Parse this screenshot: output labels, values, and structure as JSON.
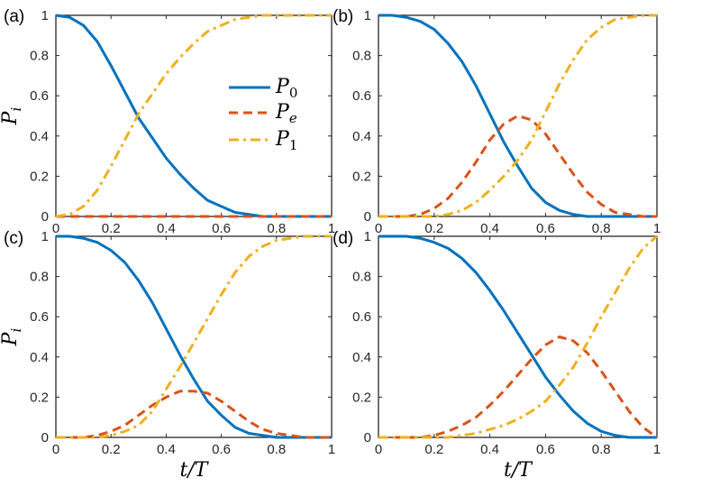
{
  "chart_data": {
    "type": "line",
    "legend": {
      "entries": [
        {
          "series": "P0",
          "symbol": "P",
          "subscript": "0"
        },
        {
          "series": "Pe",
          "symbol": "P",
          "subscript": "e"
        },
        {
          "series": "P1",
          "symbol": "P",
          "subscript": "1"
        }
      ],
      "placement": "inside panel (a), center-right"
    },
    "styles": {
      "P0": {
        "color": "#0072BD",
        "dash": "solid"
      },
      "Pe": {
        "color": "#D95319",
        "dash": "dashed"
      },
      "P1": {
        "color": "#EDB120",
        "dash": "dash-dot"
      }
    },
    "panels": [
      {
        "label": "(a)",
        "xlabel": "",
        "ylabel": "Pi",
        "ylabel_text": "P",
        "ylabel_sub": "i",
        "xlim": [
          0,
          1
        ],
        "ylim": [
          0,
          1
        ],
        "xticks": [
          "0",
          "0.2",
          "0.4",
          "0.6",
          "0.8",
          "1"
        ],
        "yticks": [
          "0",
          "0.2",
          "0.4",
          "0.6",
          "0.8",
          "1"
        ],
        "x": [
          0,
          0.05,
          0.1,
          0.15,
          0.2,
          0.25,
          0.3,
          0.35,
          0.4,
          0.45,
          0.5,
          0.55,
          0.6,
          0.65,
          0.7,
          0.75,
          0.8,
          0.85,
          0.9,
          0.95,
          1
        ],
        "series": [
          {
            "name": "P0",
            "values": [
              1,
              0.99,
              0.95,
              0.87,
              0.75,
              0.62,
              0.49,
              0.39,
              0.29,
              0.21,
              0.14,
              0.08,
              0.05,
              0.02,
              0.01,
              0,
              0,
              0,
              0,
              0,
              0
            ]
          },
          {
            "name": "Pe",
            "values": [
              0,
              0,
              0,
              0,
              0,
              0,
              0,
              0,
              0,
              0,
              0,
              0,
              0,
              0,
              0,
              0,
              0,
              0,
              0,
              0,
              0
            ]
          },
          {
            "name": "P1",
            "values": [
              0,
              0.01,
              0.05,
              0.13,
              0.25,
              0.38,
              0.51,
              0.61,
              0.71,
              0.79,
              0.86,
              0.92,
              0.95,
              0.98,
              0.99,
              1,
              1,
              1,
              1,
              1,
              1
            ]
          }
        ]
      },
      {
        "label": "(b)",
        "xlabel": "",
        "ylabel": "",
        "xlim": [
          0,
          1
        ],
        "ylim": [
          0,
          1
        ],
        "xticks": [
          "0",
          "0.2",
          "0.4",
          "0.6",
          "0.8",
          "1"
        ],
        "yticks": [
          "0",
          "0.2",
          "0.4",
          "0.6",
          "0.8",
          "1"
        ],
        "x": [
          0,
          0.05,
          0.1,
          0.15,
          0.2,
          0.25,
          0.3,
          0.35,
          0.4,
          0.45,
          0.5,
          0.55,
          0.6,
          0.65,
          0.7,
          0.75,
          0.8,
          0.85,
          0.9,
          0.95,
          1
        ],
        "series": [
          {
            "name": "P0",
            "values": [
              1,
              1,
              0.99,
              0.97,
              0.93,
              0.86,
              0.77,
              0.65,
              0.51,
              0.37,
              0.25,
              0.14,
              0.07,
              0.03,
              0.01,
              0,
              0,
              0,
              0,
              0,
              0
            ]
          },
          {
            "name": "Pe",
            "values": [
              0,
              0,
              0,
              0.01,
              0.04,
              0.09,
              0.17,
              0.27,
              0.38,
              0.46,
              0.5,
              0.48,
              0.41,
              0.31,
              0.21,
              0.12,
              0.06,
              0.02,
              0.01,
              0,
              0
            ]
          },
          {
            "name": "P1",
            "values": [
              0,
              0,
              0,
              0,
              0,
              0.01,
              0.03,
              0.07,
              0.13,
              0.2,
              0.28,
              0.38,
              0.52,
              0.66,
              0.78,
              0.88,
              0.94,
              0.98,
              0.99,
              1,
              1
            ]
          }
        ]
      },
      {
        "label": "(c)",
        "xlabel": "t/T",
        "ylabel": "Pi",
        "xlabel_text": "t/T",
        "ylabel_text": "P",
        "ylabel_sub": "i",
        "xlim": [
          0,
          1
        ],
        "ylim": [
          0,
          1
        ],
        "xticks": [
          "0",
          "0.2",
          "0.4",
          "0.6",
          "0.8",
          "1"
        ],
        "yticks": [
          "0",
          "0.2",
          "0.4",
          "0.6",
          "0.8",
          "1"
        ],
        "x": [
          0,
          0.05,
          0.1,
          0.15,
          0.2,
          0.25,
          0.3,
          0.35,
          0.4,
          0.45,
          0.5,
          0.55,
          0.6,
          0.65,
          0.7,
          0.75,
          0.8,
          0.85,
          0.9,
          0.95,
          1
        ],
        "series": [
          {
            "name": "P0",
            "values": [
              1,
              1,
              0.99,
              0.97,
              0.93,
              0.87,
              0.78,
              0.67,
              0.54,
              0.41,
              0.29,
              0.18,
              0.11,
              0.05,
              0.02,
              0.01,
              0,
              0,
              0,
              0,
              0
            ]
          },
          {
            "name": "Pe",
            "values": [
              0,
              0,
              0,
              0.01,
              0.03,
              0.06,
              0.11,
              0.16,
              0.2,
              0.23,
              0.23,
              0.22,
              0.18,
              0.13,
              0.08,
              0.04,
              0.02,
              0.01,
              0,
              0,
              0
            ]
          },
          {
            "name": "P1",
            "values": [
              0,
              0,
              0,
              0,
              0.01,
              0.03,
              0.06,
              0.13,
              0.24,
              0.35,
              0.47,
              0.59,
              0.71,
              0.82,
              0.9,
              0.95,
              0.98,
              0.99,
              1,
              1,
              1
            ]
          }
        ]
      },
      {
        "label": "(d)",
        "xlabel": "t/T",
        "ylabel": "",
        "xlabel_text": "t/T",
        "xlim": [
          0,
          1
        ],
        "ylim": [
          0,
          1
        ],
        "xticks": [
          "0",
          "0.2",
          "0.4",
          "0.6",
          "0.8",
          "1"
        ],
        "yticks": [
          "0",
          "0.2",
          "0.4",
          "0.6",
          "0.8",
          "1"
        ],
        "x": [
          0,
          0.05,
          0.1,
          0.15,
          0.2,
          0.25,
          0.3,
          0.35,
          0.4,
          0.45,
          0.5,
          0.55,
          0.6,
          0.65,
          0.7,
          0.75,
          0.8,
          0.85,
          0.9,
          0.95,
          1
        ],
        "series": [
          {
            "name": "P0",
            "values": [
              1,
              1,
              1,
              0.99,
              0.97,
              0.94,
              0.89,
              0.82,
              0.73,
              0.63,
              0.52,
              0.41,
              0.3,
              0.21,
              0.13,
              0.07,
              0.03,
              0.01,
              0,
              0,
              0
            ]
          },
          {
            "name": "Pe",
            "values": [
              0,
              0,
              0,
              0,
              0.01,
              0.03,
              0.06,
              0.1,
              0.16,
              0.23,
              0.31,
              0.39,
              0.46,
              0.5,
              0.48,
              0.42,
              0.33,
              0.23,
              0.13,
              0.05,
              0
            ]
          },
          {
            "name": "P1",
            "values": [
              0,
              0,
              0,
              0,
              0,
              0,
              0.01,
              0.02,
              0.04,
              0.06,
              0.09,
              0.13,
              0.18,
              0.26,
              0.35,
              0.47,
              0.6,
              0.72,
              0.84,
              0.94,
              1
            ]
          }
        ]
      }
    ]
  }
}
